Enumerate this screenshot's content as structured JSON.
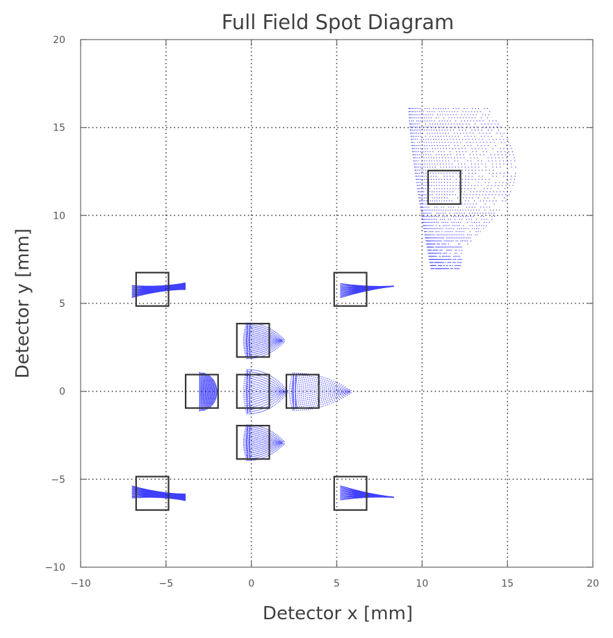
{
  "chart_data": {
    "type": "scatter",
    "title": "Full Field Spot Diagram",
    "xlabel": "Detector x [mm]",
    "ylabel": "Detector y [mm]",
    "xlim": [
      -10,
      20
    ],
    "ylim": [
      -10,
      20
    ],
    "grid": true,
    "x_ticks": [
      -10,
      -5,
      0,
      5,
      10,
      15,
      20
    ],
    "y_ticks": [
      -10,
      -5,
      0,
      5,
      10,
      15,
      20
    ],
    "x_tick_labels": [
      "−10",
      "−5",
      "0",
      "5",
      "10",
      "15",
      "20"
    ],
    "y_tick_labels": [
      "−10",
      "−5",
      "0",
      "5",
      "10",
      "15",
      "20"
    ],
    "spot_color": "#0000ff",
    "box_color": "#333333",
    "detector_box_size_mm": 1.9,
    "fields": [
      {
        "name": "center",
        "box_center": [
          0.1,
          0.0
        ],
        "spot": {
          "shape": "fan",
          "x0": -0.3,
          "y0": 0.0,
          "length": 2.2,
          "halfheight": 1.2
        }
      },
      {
        "name": "top",
        "box_center": [
          0.1,
          2.9
        ],
        "spot": {
          "shape": "fan",
          "x0": -0.3,
          "y0": 2.9,
          "length": 2.0,
          "halfheight": 0.95
        }
      },
      {
        "name": "bottom",
        "box_center": [
          0.1,
          -2.9
        ],
        "spot": {
          "shape": "fan",
          "x0": -0.3,
          "y0": -2.9,
          "length": 2.0,
          "halfheight": 0.95
        }
      },
      {
        "name": "left",
        "box_center": [
          -2.9,
          0.0
        ],
        "spot": {
          "shape": "crescent",
          "x0": -3.1,
          "y0": 0.0,
          "length": 1.0,
          "halfheight": 1.1
        }
      },
      {
        "name": "right",
        "box_center": [
          3.0,
          0.0
        ],
        "spot": {
          "shape": "fan",
          "x0": 2.4,
          "y0": 0.0,
          "length": 3.2,
          "halfheight": 1.0
        }
      },
      {
        "name": "top-left",
        "box_center": [
          -5.8,
          5.8
        ],
        "spot": {
          "shape": "bowtie",
          "x0": -7.0,
          "y0": 5.7,
          "x1": -3.9,
          "y1": 6.0
        }
      },
      {
        "name": "top-right",
        "box_center": [
          5.8,
          5.8
        ],
        "spot": {
          "shape": "wedge",
          "x0": 5.2,
          "y0": 5.75,
          "x1": 8.3,
          "y1": 6.0
        }
      },
      {
        "name": "bottom-left",
        "box_center": [
          -5.8,
          -5.8
        ],
        "spot": {
          "shape": "bowtie",
          "x0": -7.0,
          "y0": -5.7,
          "x1": -3.9,
          "y1": -6.0
        }
      },
      {
        "name": "bottom-right",
        "box_center": [
          5.8,
          -5.8
        ],
        "spot": {
          "shape": "wedge",
          "x0": 5.2,
          "y0": -5.75,
          "x1": 8.3,
          "y1": -6.0
        }
      },
      {
        "name": "far-upper-right",
        "box_center": [
          11.3,
          11.6
        ],
        "spot": {
          "shape": "sparse",
          "left_top": [
            9.2,
            16.1
          ],
          "left_bottom": [
            10.5,
            7.0
          ],
          "right_top": [
            13.8,
            15.7
          ],
          "right_bottom": [
            12.2,
            6.8
          ],
          "max_x": 16.1
        }
      }
    ]
  }
}
